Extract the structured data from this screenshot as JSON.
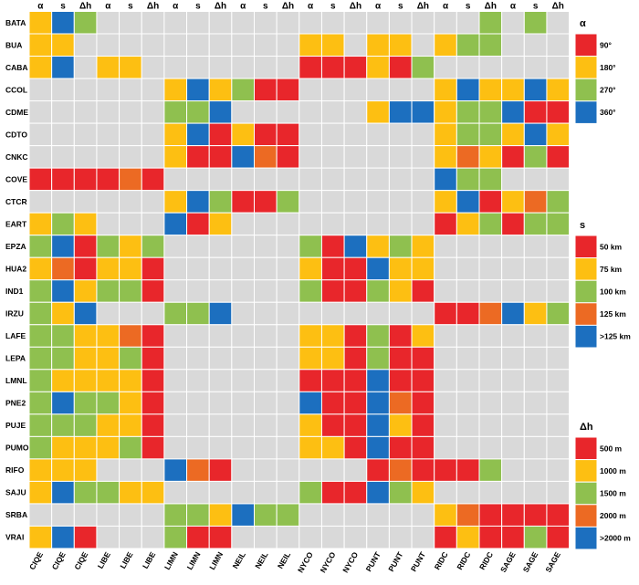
{
  "chart_data": {
    "type": "heatmap",
    "top_labels": [
      "α",
      "s",
      "Δh",
      "α",
      "s",
      "Δh",
      "α",
      "s",
      "Δh",
      "α",
      "s",
      "Δh",
      "α",
      "s",
      "Δh",
      "α",
      "s",
      "Δh",
      "α",
      "s",
      "Δh",
      "α",
      "s",
      "Δh"
    ],
    "columns": [
      "CIQE",
      "CIQE",
      "CIQE",
      "LIBE",
      "LIBE",
      "LIBE",
      "LIMN",
      "LIMN",
      "LIMN",
      "NEIL",
      "NEIL",
      "NEIL",
      "NYCO",
      "NYCO",
      "NYCO",
      "PUNT",
      "PUNT",
      "PUNT",
      "RIDC",
      "RIDC",
      "RIDC",
      "SAGE",
      "SAGE",
      "SAGE"
    ],
    "rows": [
      "BATA",
      "BUA",
      "CABA",
      "CCOL",
      "CDME",
      "CDTO",
      "CNKC",
      "COVE",
      "CTCR",
      "EART",
      "EPZA",
      "HUA2",
      "IND1",
      "IRZU",
      "LAFE",
      "LEPA",
      "LMNL",
      "PNE2",
      "PUJE",
      "PUMO",
      "RIFO",
      "SAJU",
      "SRBA",
      "VRAI"
    ],
    "level_colors": [
      "#d9d9d9",
      "#e8262b",
      "#fdbf12",
      "#8fc04f",
      "#ec6a23",
      "#1c6fbf"
    ],
    "matrix": [
      "253000000000000000003030",
      "220000000000220220233000",
      "250220000000111213000000",
      "000000252311000000252252",
      "000000335000000255233511",
      "000000251211000000233252",
      "000000211541000000242131",
      "111141000000000000533000",
      "000000253113000000251243",
      "232000512000000000123133",
      "351323000000315232000000",
      "241221000000211522000000",
      "352331000000311321000000",
      "325000335000000000114523",
      "332241000000221312000000",
      "332231000000221311000000",
      "322221000000111511000000",
      "353321000000511541000000",
      "333221000000211521000000",
      "322231000000221511000000",
      "222000541000000141113000",
      "253322000000311532000000",
      "000000332533000000241111",
      "251000311000000000121131"
    ],
    "legends": [
      {
        "title": "α",
        "entries": [
          "90°",
          "180°",
          "270°",
          "360°"
        ],
        "levels": [
          1,
          2,
          3,
          5
        ]
      },
      {
        "title": "s",
        "entries": [
          "50 km",
          "75 km",
          "100 km",
          "125 km",
          ">125 km"
        ],
        "levels": [
          1,
          2,
          3,
          4,
          5
        ]
      },
      {
        "title": "Δh",
        "entries": [
          "500 m",
          "1000 m",
          "1500 m",
          "2000 m",
          ">2000 m"
        ],
        "levels": [
          1,
          2,
          3,
          4,
          5
        ]
      }
    ]
  }
}
